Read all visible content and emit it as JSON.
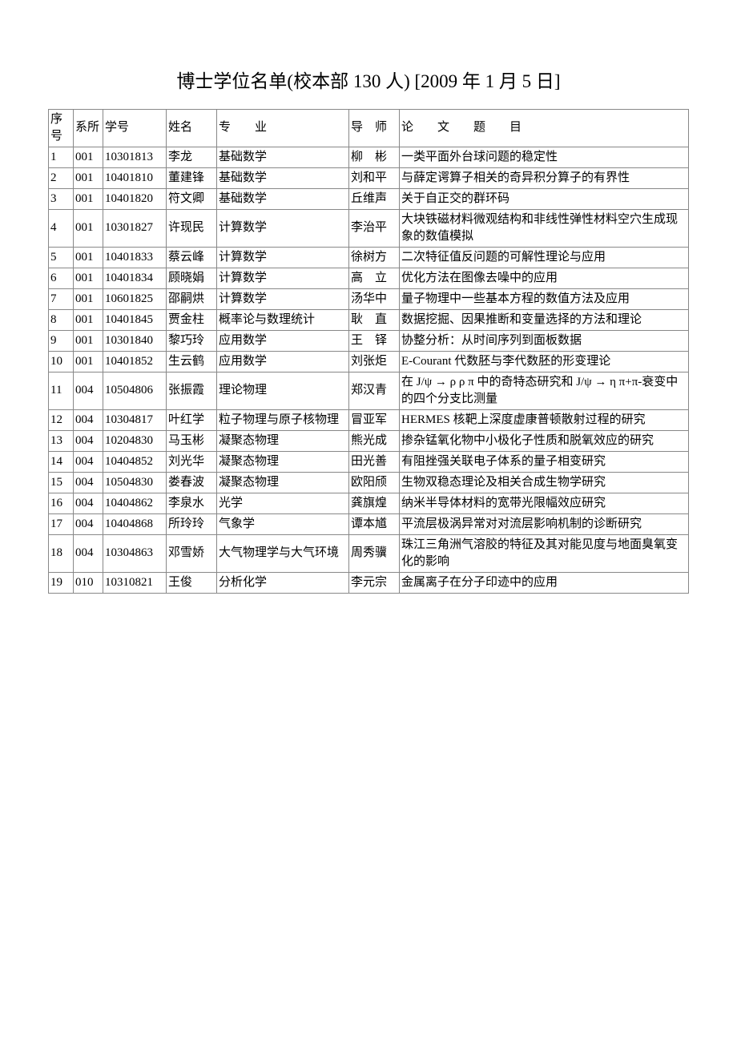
{
  "title": "博士学位名单(校本部 130 人) [2009 年 1 月 5 日]",
  "headers": {
    "seq": "序号",
    "dept": "系所",
    "id": "学号",
    "name": "姓名",
    "major": "专　　业",
    "advisor": "导　师",
    "thesis": "论　　文　　题　　目"
  },
  "rows": [
    {
      "seq": "1",
      "dept": "001",
      "id": "10301813",
      "name": "李龙",
      "major": "基础数学",
      "advisor": "柳　彬",
      "thesis": "一类平面外台球问题的稳定性"
    },
    {
      "seq": "2",
      "dept": "001",
      "id": "10401810",
      "name": "董建锋",
      "major": "基础数学",
      "advisor": "刘和平",
      "thesis": "与薛定谔算子相关的奇异积分算子的有界性"
    },
    {
      "seq": "3",
      "dept": "001",
      "id": "10401820",
      "name": "符文卿",
      "major": "基础数学",
      "advisor": "丘维声",
      "thesis": "关于自正交的群环码"
    },
    {
      "seq": "4",
      "dept": "001",
      "id": "10301827",
      "name": "许现民",
      "major": "计算数学",
      "advisor": "李治平",
      "thesis": "大块铁磁材料微观结构和非线性弹性材料空穴生成现象的数值模拟"
    },
    {
      "seq": "5",
      "dept": "001",
      "id": "10401833",
      "name": "蔡云峰",
      "major": "计算数学",
      "advisor": "徐树方",
      "thesis": "二次特征值反问题的可解性理论与应用"
    },
    {
      "seq": "6",
      "dept": "001",
      "id": "10401834",
      "name": "顾晓娟",
      "major": "计算数学",
      "advisor": "高　立",
      "thesis": "优化方法在图像去噪中的应用"
    },
    {
      "seq": "7",
      "dept": "001",
      "id": "10601825",
      "name": "邵嗣烘",
      "major": "计算数学",
      "advisor": "汤华中",
      "thesis": "量子物理中一些基本方程的数值方法及应用"
    },
    {
      "seq": "8",
      "dept": "001",
      "id": "10401845",
      "name": "贾金柱",
      "major": "概率论与数理统计",
      "advisor": "耿　直",
      "thesis": "数据挖掘、因果推断和变量选择的方法和理论"
    },
    {
      "seq": "9",
      "dept": "001",
      "id": "10301840",
      "name": "黎巧玲",
      "major": "应用数学",
      "advisor": "王　铎",
      "thesis": "协整分析：从时间序列到面板数据"
    },
    {
      "seq": "10",
      "dept": "001",
      "id": "10401852",
      "name": "生云鹤",
      "major": "应用数学",
      "advisor": "刘张炬",
      "thesis": "E-Courant 代数胚与李代数胚的形变理论"
    },
    {
      "seq": "11",
      "dept": "004",
      "id": "10504806",
      "name": "张振霞",
      "major": "理论物理",
      "advisor": "郑汉青",
      "thesis": "在 J/ψ → ρ ρ π 中的奇特态研究和 J/ψ → η π+π-衰变中的四个分支比测量"
    },
    {
      "seq": "12",
      "dept": "004",
      "id": "10304817",
      "name": "叶红学",
      "major": "粒子物理与原子核物理",
      "advisor": "冒亚军",
      "thesis": "HERMES 核靶上深度虚康普顿散射过程的研究"
    },
    {
      "seq": "13",
      "dept": "004",
      "id": "10204830",
      "name": "马玉彬",
      "major": "凝聚态物理",
      "advisor": "熊光成",
      "thesis": "掺杂锰氧化物中小极化子性质和脱氧效应的研究"
    },
    {
      "seq": "14",
      "dept": "004",
      "id": "10404852",
      "name": "刘光华",
      "major": "凝聚态物理",
      "advisor": "田光善",
      "thesis": "有阻挫强关联电子体系的量子相变研究"
    },
    {
      "seq": "15",
      "dept": "004",
      "id": "10504830",
      "name": "娄春波",
      "major": "凝聚态物理",
      "advisor": "欧阳颀",
      "thesis": "生物双稳态理论及相关合成生物学研究"
    },
    {
      "seq": "16",
      "dept": "004",
      "id": "10404862",
      "name": "李泉水",
      "major": "光学",
      "advisor": "龚旗煌",
      "thesis": "纳米半导体材料的宽带光限幅效应研究"
    },
    {
      "seq": "17",
      "dept": "004",
      "id": "10404868",
      "name": "所玲玲",
      "major": "气象学",
      "advisor": "谭本馗",
      "thesis": "平流层极涡异常对对流层影响机制的诊断研究"
    },
    {
      "seq": "18",
      "dept": "004",
      "id": "10304863",
      "name": "邓雪娇",
      "major": "大气物理学与大气环境",
      "advisor": "周秀骥",
      "thesis": "珠江三角洲气溶胶的特征及其对能见度与地面臭氧变化的影响"
    },
    {
      "seq": "19",
      "dept": "010",
      "id": "10310821",
      "name": "王俊",
      "major": "分析化学",
      "advisor": "李元宗",
      "thesis": "金属离子在分子印迹中的应用"
    }
  ]
}
